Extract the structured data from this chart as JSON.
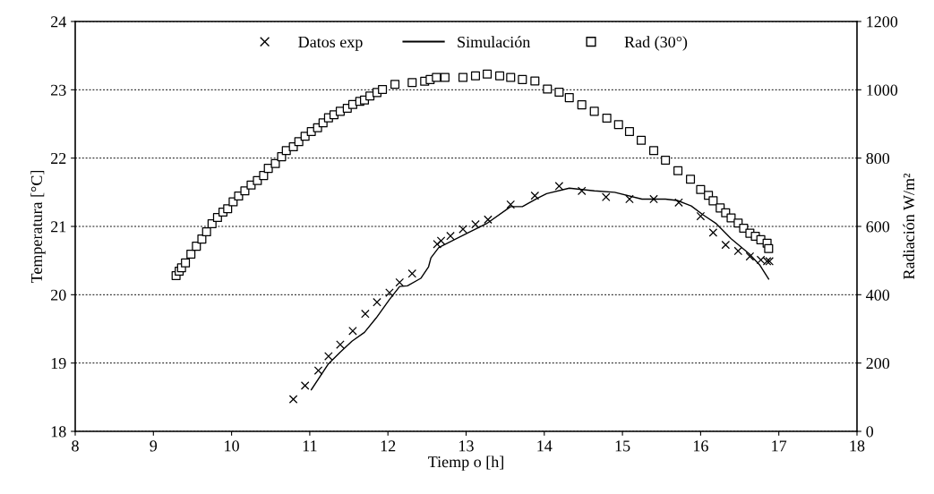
{
  "chart_data": {
    "type": "scatter",
    "xlabel": "Tiemp o [h]",
    "ylabel": "Temperatura [°C]",
    "y2label": "Radiación W/m²",
    "xlim": [
      8,
      18
    ],
    "xticks": [
      8,
      9,
      10,
      11,
      12,
      13,
      14,
      15,
      16,
      17,
      18
    ],
    "ylim": [
      18,
      24
    ],
    "yticks": [
      18,
      19,
      20,
      21,
      22,
      23,
      24
    ],
    "y2lim": [
      0,
      1200
    ],
    "y2ticks": [
      0,
      200,
      400,
      600,
      800,
      1000,
      1200
    ],
    "grid": "y",
    "legend": "top",
    "series": [
      {
        "name": "Datos exp",
        "marker": "cross",
        "color": "#000000",
        "x": [
          10.79,
          10.94,
          11.11,
          11.24,
          11.39,
          11.55,
          11.71,
          11.86,
          12.02,
          12.15,
          12.31,
          12.63,
          12.68,
          12.8,
          12.96,
          13.12,
          13.28,
          13.57,
          13.88,
          14.19,
          14.48,
          14.79,
          15.09,
          15.4,
          15.72,
          16.0,
          16.16,
          16.32,
          16.48,
          16.63,
          16.77,
          16.85,
          16.88
        ],
        "values": [
          18.47,
          18.67,
          18.89,
          19.1,
          19.27,
          19.47,
          19.72,
          19.89,
          20.03,
          20.18,
          20.31,
          20.74,
          20.79,
          20.86,
          20.96,
          21.03,
          21.1,
          21.32,
          21.45,
          21.59,
          21.52,
          21.43,
          21.4,
          21.4,
          21.35,
          21.15,
          20.91,
          20.73,
          20.64,
          20.56,
          20.51,
          20.49,
          20.49
        ]
      },
      {
        "name": "Simulación",
        "type": "line",
        "marker": "none",
        "line_style": "solid",
        "color": "#000000",
        "x": [
          11.02,
          11.24,
          11.39,
          11.54,
          11.7,
          11.85,
          12.02,
          12.15,
          12.25,
          12.42,
          12.52,
          12.55,
          12.65,
          13.03,
          13.26,
          13.57,
          13.72,
          13.91,
          14.03,
          14.32,
          14.64,
          14.9,
          15.25,
          15.55,
          15.7,
          15.88,
          16.03,
          16.2,
          16.39,
          16.62,
          16.76,
          16.87
        ],
        "values": [
          18.61,
          18.99,
          19.16,
          19.32,
          19.45,
          19.66,
          19.93,
          20.12,
          20.13,
          20.24,
          20.41,
          20.54,
          20.69,
          20.91,
          21.04,
          21.29,
          21.29,
          21.41,
          21.48,
          21.56,
          21.52,
          21.5,
          21.4,
          21.4,
          21.38,
          21.3,
          21.17,
          21.04,
          20.82,
          20.6,
          20.43,
          20.23
        ]
      },
      {
        "name": "Rad (30°)",
        "marker": "square",
        "axis": "y2",
        "color": "#000000",
        "x": [
          9.29,
          9.33,
          9.36,
          9.41,
          9.48,
          9.55,
          9.62,
          9.68,
          9.75,
          9.82,
          9.89,
          9.95,
          10.02,
          10.09,
          10.17,
          10.25,
          10.33,
          10.41,
          10.47,
          10.56,
          10.64,
          10.7,
          10.79,
          10.86,
          10.94,
          11.02,
          11.1,
          11.17,
          11.24,
          11.31,
          11.39,
          11.48,
          11.55,
          11.64,
          11.7,
          11.77,
          11.86,
          11.93,
          12.09,
          12.31,
          12.47,
          12.54,
          12.62,
          12.73,
          12.96,
          13.12,
          13.27,
          13.43,
          13.57,
          13.72,
          13.88,
          14.04,
          14.19,
          14.32,
          14.48,
          14.64,
          14.8,
          14.95,
          15.09,
          15.24,
          15.4,
          15.55,
          15.71,
          15.87,
          16.0,
          16.1,
          16.16,
          16.25,
          16.32,
          16.39,
          16.48,
          16.55,
          16.63,
          16.7,
          16.77,
          16.85,
          16.87
        ],
        "values": [
          456,
          469,
          479,
          493,
          519,
          542,
          563,
          584,
          608,
          626,
          642,
          652,
          672,
          689,
          704,
          721,
          734,
          749,
          770,
          784,
          804,
          822,
          833,
          848,
          864,
          878,
          889,
          903,
          918,
          927,
          937,
          946,
          957,
          966,
          970,
          982,
          992,
          1001,
          1016,
          1021,
          1025,
          1030,
          1036,
          1036,
          1036,
          1041,
          1046,
          1041,
          1036,
          1030,
          1026,
          1002,
          993,
          977,
          956,
          937,
          917,
          898,
          878,
          852,
          822,
          794,
          763,
          738,
          708,
          691,
          675,
          654,
          640,
          625,
          610,
          595,
          580,
          571,
          561,
          551,
          535
        ]
      }
    ]
  }
}
